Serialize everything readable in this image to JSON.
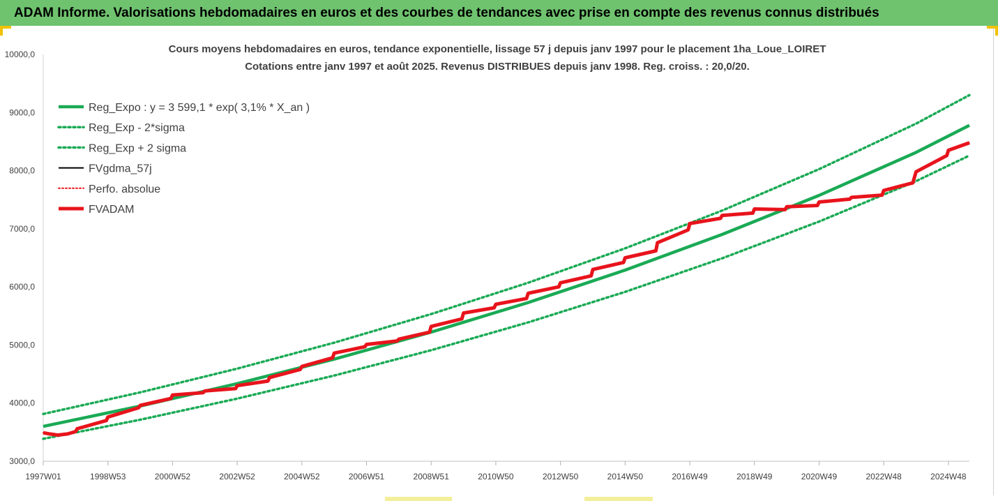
{
  "banner": {
    "title": "ADAM Informe. Valorisations hebdomadaires en euros et des courbes de tendances avec prise en compte des revenus connus distribués"
  },
  "colors": {
    "banner_bg": "#6fc36f",
    "trend": "#1aaa55",
    "fv_gdma": "#000000",
    "perfo": "#e8141c",
    "fvadam": "#e8141c",
    "accent_corner": "#f2c200"
  },
  "chart_data": {
    "type": "line",
    "title": "Cours moyens hebdomadaires en euros, tendance exponentielle, lissage 57 j depuis janv 1997  pour le placement 1ha_Loue_LOIRET",
    "subtitle": "Cotations entre janv 1997 et août 2025. Revenus DISTRIBUES depuis janv 1998. Reg. croiss. : 20,0/20.",
    "ylim": [
      3000,
      10000
    ],
    "y_ticks": [
      "10000,0",
      "9000,0",
      "8000,0",
      "7000,0",
      "6000,0",
      "5000,0",
      "4000,0",
      "3000,0"
    ],
    "x_tick_labels": [
      "1997W01",
      "1998W53",
      "2000W52",
      "2002W52",
      "2004W52",
      "2006W51",
      "2008W51",
      "2010W50",
      "2012W50",
      "2014W50",
      "2016W49",
      "2018W49",
      "2020W49",
      "2022W48",
      "2024W48"
    ],
    "x_tick_years": [
      1997.0,
      1999.0,
      2001.0,
      2003.0,
      2005.0,
      2007.0,
      2009.0,
      2011.0,
      2013.0,
      2015.0,
      2017.0,
      2019.0,
      2021.0,
      2023.0,
      2025.0
    ],
    "x_range": [
      1997.0,
      2025.65
    ],
    "legend_position": "top-left",
    "grid": false,
    "series": [
      {
        "name": "Reg_Expo : y = 3 599,1 * exp( 3,1% *  X_an )",
        "style": "solid-thick",
        "color": "#1aaa55",
        "x": [
          1997,
          2000,
          2003,
          2006,
          2009,
          2012,
          2015,
          2018,
          2021,
          2024,
          2025.65
        ],
        "y": [
          3599,
          3950,
          4335,
          4757,
          5221,
          5730,
          6289,
          6902,
          7575,
          8314,
          8780
        ]
      },
      {
        "name": "Reg_Exp - 2*sigma",
        "style": "dotted",
        "color": "#1aaa55",
        "x": [
          1997,
          2000,
          2003,
          2006,
          2009,
          2012,
          2015,
          2018,
          2021,
          2024,
          2025.65
        ],
        "y": [
          3385,
          3715,
          4077,
          4474,
          4910,
          5389,
          5914,
          6491,
          7124,
          7819,
          8260
        ]
      },
      {
        "name": "Reg_Exp + 2 sigma",
        "style": "dotted",
        "color": "#1aaa55",
        "x": [
          1997,
          2000,
          2003,
          2006,
          2009,
          2012,
          2015,
          2018,
          2021,
          2024,
          2025.65
        ],
        "y": [
          3813,
          4185,
          4593,
          5040,
          5532,
          6071,
          6663,
          7313,
          8026,
          8809,
          9300
        ]
      },
      {
        "name": "FVgdma_57j",
        "style": "solid",
        "color": "#000000",
        "x": [
          1997.0,
          1997.2,
          1997.45,
          1997.75,
          1998.0,
          1998.05,
          1998.95,
          1999.0,
          1999.95,
          2000.0,
          2000.95,
          2001.0,
          2001.95,
          2002.0,
          2002.95,
          2003.0,
          2003.95,
          2004.0,
          2004.95,
          2005.0,
          2005.95,
          2006.0,
          2006.95,
          2007.0,
          2007.95,
          2008.0,
          2008.95,
          2009.0,
          2009.95,
          2010.0,
          2010.95,
          2011.0,
          2011.95,
          2012.0,
          2012.95,
          2013.0,
          2013.95,
          2014.0,
          2014.95,
          2015.0,
          2015.95,
          2016.0,
          2016.95,
          2017.0,
          2017.95,
          2018.0,
          2018.95,
          2019.0,
          2019.95,
          2020.0,
          2020.95,
          2021.0,
          2021.95,
          2022.0,
          2022.95,
          2023.0,
          2023.9,
          2024.0,
          2024.95,
          2025.0,
          2025.65
        ],
        "y": [
          3490,
          3470,
          3450,
          3470,
          3510,
          3560,
          3700,
          3760,
          3920,
          3960,
          4080,
          4140,
          4180,
          4210,
          4250,
          4300,
          4380,
          4440,
          4580,
          4630,
          4780,
          4860,
          4970,
          5010,
          5070,
          5100,
          5220,
          5320,
          5450,
          5550,
          5640,
          5700,
          5800,
          5890,
          6000,
          6070,
          6190,
          6300,
          6420,
          6500,
          6620,
          6760,
          6980,
          7090,
          7180,
          7230,
          7270,
          7340,
          7330,
          7380,
          7400,
          7460,
          7510,
          7540,
          7580,
          7660,
          7790,
          7980,
          8260,
          8350,
          8480
        ]
      },
      {
        "name": "Perfo. absolue",
        "style": "dotted",
        "color": "#e8141c",
        "x": [
          1997.0,
          1997.2,
          1997.45,
          1997.75,
          1998.0,
          1998.05,
          1998.95,
          1999.0,
          1999.95,
          2000.0,
          2000.95,
          2001.0,
          2001.95,
          2002.0,
          2002.95,
          2003.0,
          2003.95,
          2004.0,
          2004.95,
          2005.0,
          2005.95,
          2006.0,
          2006.95,
          2007.0,
          2007.95,
          2008.0,
          2008.95,
          2009.0,
          2009.95,
          2010.0,
          2010.95,
          2011.0,
          2011.95,
          2012.0,
          2012.95,
          2013.0,
          2013.95,
          2014.0,
          2014.95,
          2015.0,
          2015.95,
          2016.0,
          2016.95,
          2017.0,
          2017.95,
          2018.0,
          2018.95,
          2019.0,
          2019.95,
          2020.0,
          2020.95,
          2021.0,
          2021.95,
          2022.0,
          2022.95,
          2023.0,
          2023.9,
          2024.0,
          2024.95,
          2025.0,
          2025.65
        ],
        "y": [
          3490,
          3470,
          3450,
          3470,
          3510,
          3560,
          3700,
          3760,
          3920,
          3960,
          4080,
          4140,
          4180,
          4210,
          4250,
          4300,
          4380,
          4440,
          4580,
          4630,
          4780,
          4860,
          4970,
          5010,
          5070,
          5100,
          5220,
          5320,
          5450,
          5550,
          5640,
          5700,
          5800,
          5890,
          6000,
          6070,
          6190,
          6300,
          6420,
          6500,
          6620,
          6760,
          6980,
          7090,
          7180,
          7230,
          7270,
          7340,
          7330,
          7380,
          7400,
          7460,
          7510,
          7540,
          7580,
          7660,
          7790,
          7980,
          8260,
          8350,
          8480
        ]
      },
      {
        "name": "FVADAM",
        "style": "solid-thick",
        "color": "#e8141c",
        "x": [
          1997.0,
          1997.2,
          1997.45,
          1997.75,
          1998.0,
          1998.05,
          1998.95,
          1999.0,
          1999.95,
          2000.0,
          2000.95,
          2001.0,
          2001.95,
          2002.0,
          2002.95,
          2003.0,
          2003.95,
          2004.0,
          2004.95,
          2005.0,
          2005.95,
          2006.0,
          2006.95,
          2007.0,
          2007.95,
          2008.0,
          2008.95,
          2009.0,
          2009.95,
          2010.0,
          2010.95,
          2011.0,
          2011.95,
          2012.0,
          2012.95,
          2013.0,
          2013.95,
          2014.0,
          2014.95,
          2015.0,
          2015.95,
          2016.0,
          2016.95,
          2017.0,
          2017.95,
          2018.0,
          2018.95,
          2019.0,
          2019.95,
          2020.0,
          2020.95,
          2021.0,
          2021.95,
          2022.0,
          2022.95,
          2023.0,
          2023.9,
          2024.0,
          2024.95,
          2025.0,
          2025.65
        ],
        "y": [
          3490,
          3470,
          3450,
          3470,
          3510,
          3560,
          3700,
          3760,
          3920,
          3960,
          4080,
          4140,
          4180,
          4210,
          4250,
          4300,
          4380,
          4440,
          4580,
          4630,
          4780,
          4860,
          4970,
          5010,
          5070,
          5100,
          5220,
          5320,
          5450,
          5550,
          5640,
          5700,
          5800,
          5890,
          6000,
          6070,
          6190,
          6300,
          6420,
          6500,
          6620,
          6760,
          6980,
          7090,
          7180,
          7230,
          7270,
          7340,
          7330,
          7380,
          7400,
          7460,
          7510,
          7540,
          7580,
          7660,
          7790,
          7980,
          8260,
          8350,
          8480
        ]
      }
    ]
  }
}
